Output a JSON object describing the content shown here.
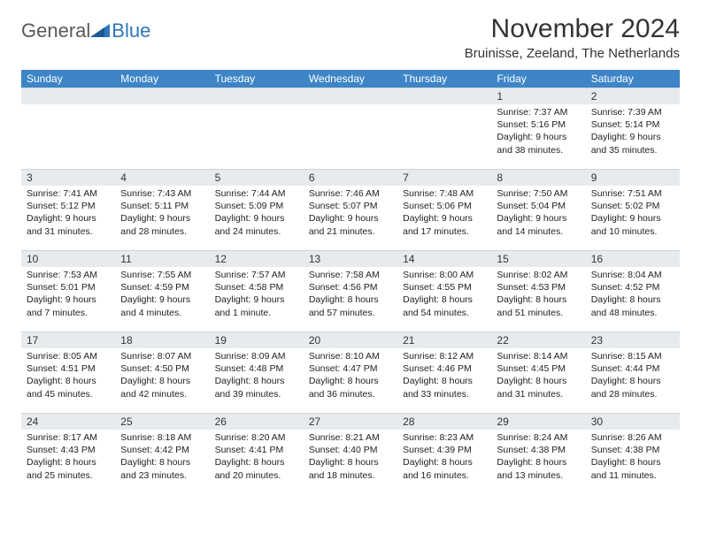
{
  "brand": {
    "text1": "General",
    "text2": "Blue"
  },
  "title": "November 2024",
  "location": "Bruinisse, Zeeland, The Netherlands",
  "colors": {
    "header_bg": "#3d85c6",
    "header_fg": "#ffffff",
    "daybar_bg": "#e8ebed",
    "brand_gray": "#555a5e",
    "brand_blue": "#2f76bb"
  },
  "weekdays": [
    "Sunday",
    "Monday",
    "Tuesday",
    "Wednesday",
    "Thursday",
    "Friday",
    "Saturday"
  ],
  "weeks": [
    [
      {
        "day": "",
        "sunrise": "",
        "sunset": "",
        "daylight": ""
      },
      {
        "day": "",
        "sunrise": "",
        "sunset": "",
        "daylight": ""
      },
      {
        "day": "",
        "sunrise": "",
        "sunset": "",
        "daylight": ""
      },
      {
        "day": "",
        "sunrise": "",
        "sunset": "",
        "daylight": ""
      },
      {
        "day": "",
        "sunrise": "",
        "sunset": "",
        "daylight": ""
      },
      {
        "day": "1",
        "sunrise": "Sunrise: 7:37 AM",
        "sunset": "Sunset: 5:16 PM",
        "daylight": "Daylight: 9 hours and 38 minutes."
      },
      {
        "day": "2",
        "sunrise": "Sunrise: 7:39 AM",
        "sunset": "Sunset: 5:14 PM",
        "daylight": "Daylight: 9 hours and 35 minutes."
      }
    ],
    [
      {
        "day": "3",
        "sunrise": "Sunrise: 7:41 AM",
        "sunset": "Sunset: 5:12 PM",
        "daylight": "Daylight: 9 hours and 31 minutes."
      },
      {
        "day": "4",
        "sunrise": "Sunrise: 7:43 AM",
        "sunset": "Sunset: 5:11 PM",
        "daylight": "Daylight: 9 hours and 28 minutes."
      },
      {
        "day": "5",
        "sunrise": "Sunrise: 7:44 AM",
        "sunset": "Sunset: 5:09 PM",
        "daylight": "Daylight: 9 hours and 24 minutes."
      },
      {
        "day": "6",
        "sunrise": "Sunrise: 7:46 AM",
        "sunset": "Sunset: 5:07 PM",
        "daylight": "Daylight: 9 hours and 21 minutes."
      },
      {
        "day": "7",
        "sunrise": "Sunrise: 7:48 AM",
        "sunset": "Sunset: 5:06 PM",
        "daylight": "Daylight: 9 hours and 17 minutes."
      },
      {
        "day": "8",
        "sunrise": "Sunrise: 7:50 AM",
        "sunset": "Sunset: 5:04 PM",
        "daylight": "Daylight: 9 hours and 14 minutes."
      },
      {
        "day": "9",
        "sunrise": "Sunrise: 7:51 AM",
        "sunset": "Sunset: 5:02 PM",
        "daylight": "Daylight: 9 hours and 10 minutes."
      }
    ],
    [
      {
        "day": "10",
        "sunrise": "Sunrise: 7:53 AM",
        "sunset": "Sunset: 5:01 PM",
        "daylight": "Daylight: 9 hours and 7 minutes."
      },
      {
        "day": "11",
        "sunrise": "Sunrise: 7:55 AM",
        "sunset": "Sunset: 4:59 PM",
        "daylight": "Daylight: 9 hours and 4 minutes."
      },
      {
        "day": "12",
        "sunrise": "Sunrise: 7:57 AM",
        "sunset": "Sunset: 4:58 PM",
        "daylight": "Daylight: 9 hours and 1 minute."
      },
      {
        "day": "13",
        "sunrise": "Sunrise: 7:58 AM",
        "sunset": "Sunset: 4:56 PM",
        "daylight": "Daylight: 8 hours and 57 minutes."
      },
      {
        "day": "14",
        "sunrise": "Sunrise: 8:00 AM",
        "sunset": "Sunset: 4:55 PM",
        "daylight": "Daylight: 8 hours and 54 minutes."
      },
      {
        "day": "15",
        "sunrise": "Sunrise: 8:02 AM",
        "sunset": "Sunset: 4:53 PM",
        "daylight": "Daylight: 8 hours and 51 minutes."
      },
      {
        "day": "16",
        "sunrise": "Sunrise: 8:04 AM",
        "sunset": "Sunset: 4:52 PM",
        "daylight": "Daylight: 8 hours and 48 minutes."
      }
    ],
    [
      {
        "day": "17",
        "sunrise": "Sunrise: 8:05 AM",
        "sunset": "Sunset: 4:51 PM",
        "daylight": "Daylight: 8 hours and 45 minutes."
      },
      {
        "day": "18",
        "sunrise": "Sunrise: 8:07 AM",
        "sunset": "Sunset: 4:50 PM",
        "daylight": "Daylight: 8 hours and 42 minutes."
      },
      {
        "day": "19",
        "sunrise": "Sunrise: 8:09 AM",
        "sunset": "Sunset: 4:48 PM",
        "daylight": "Daylight: 8 hours and 39 minutes."
      },
      {
        "day": "20",
        "sunrise": "Sunrise: 8:10 AM",
        "sunset": "Sunset: 4:47 PM",
        "daylight": "Daylight: 8 hours and 36 minutes."
      },
      {
        "day": "21",
        "sunrise": "Sunrise: 8:12 AM",
        "sunset": "Sunset: 4:46 PM",
        "daylight": "Daylight: 8 hours and 33 minutes."
      },
      {
        "day": "22",
        "sunrise": "Sunrise: 8:14 AM",
        "sunset": "Sunset: 4:45 PM",
        "daylight": "Daylight: 8 hours and 31 minutes."
      },
      {
        "day": "23",
        "sunrise": "Sunrise: 8:15 AM",
        "sunset": "Sunset: 4:44 PM",
        "daylight": "Daylight: 8 hours and 28 minutes."
      }
    ],
    [
      {
        "day": "24",
        "sunrise": "Sunrise: 8:17 AM",
        "sunset": "Sunset: 4:43 PM",
        "daylight": "Daylight: 8 hours and 25 minutes."
      },
      {
        "day": "25",
        "sunrise": "Sunrise: 8:18 AM",
        "sunset": "Sunset: 4:42 PM",
        "daylight": "Daylight: 8 hours and 23 minutes."
      },
      {
        "day": "26",
        "sunrise": "Sunrise: 8:20 AM",
        "sunset": "Sunset: 4:41 PM",
        "daylight": "Daylight: 8 hours and 20 minutes."
      },
      {
        "day": "27",
        "sunrise": "Sunrise: 8:21 AM",
        "sunset": "Sunset: 4:40 PM",
        "daylight": "Daylight: 8 hours and 18 minutes."
      },
      {
        "day": "28",
        "sunrise": "Sunrise: 8:23 AM",
        "sunset": "Sunset: 4:39 PM",
        "daylight": "Daylight: 8 hours and 16 minutes."
      },
      {
        "day": "29",
        "sunrise": "Sunrise: 8:24 AM",
        "sunset": "Sunset: 4:38 PM",
        "daylight": "Daylight: 8 hours and 13 minutes."
      },
      {
        "day": "30",
        "sunrise": "Sunrise: 8:26 AM",
        "sunset": "Sunset: 4:38 PM",
        "daylight": "Daylight: 8 hours and 11 minutes."
      }
    ]
  ]
}
